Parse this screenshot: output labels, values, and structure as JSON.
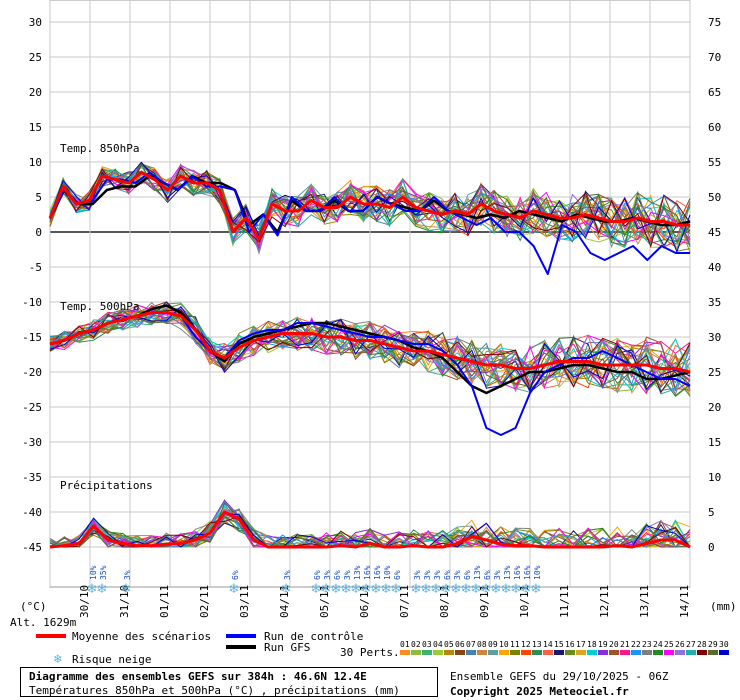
{
  "chart_data": {
    "type": "line",
    "title": "Diagramme des ensembles GEFS sur 384h : 46.6N 12.4E",
    "subtitle": "Températures 850hPa et 500hPa (°C) , précipitations (mm)",
    "left_axis_unit": "(°C)",
    "right_axis_unit": "(mm)",
    "left_ticks": [
      30,
      25,
      20,
      15,
      10,
      5,
      0,
      -5,
      -10,
      -15,
      -20,
      -25,
      -30,
      -35,
      -40,
      -45
    ],
    "right_ticks": [
      75,
      70,
      65,
      60,
      55,
      50,
      45,
      40,
      35,
      30,
      25,
      20,
      15,
      10,
      5,
      0
    ],
    "x_labels": [
      "30/10",
      "31/10",
      "01/11",
      "02/11",
      "03/11",
      "04/11",
      "05/11",
      "06/11",
      "07/11",
      "08/11",
      "09/11",
      "10/11",
      "11/11",
      "12/11",
      "13/11",
      "14/11"
    ],
    "panel_labels": {
      "t850": "Temp. 850hPa",
      "t500": "Temp. 500hPa",
      "precip": "Précipitations"
    },
    "altitude": "Alt. 1629m",
    "grid": true,
    "series": [
      {
        "name": "Moyenne des scénarios",
        "color": "#ff0000",
        "t850": [
          2,
          6.5,
          4,
          4.5,
          8,
          7.5,
          7,
          8.5,
          7.5,
          6,
          8,
          7,
          7,
          6,
          0,
          2,
          -1,
          4,
          3,
          3,
          4.5,
          3.5,
          3.5,
          5,
          4,
          4,
          3.5,
          5,
          3.5,
          3,
          2.5,
          3,
          2.5,
          4,
          3,
          2.5,
          2,
          3,
          2.5,
          2,
          2,
          2.5,
          2,
          1.5,
          1.5,
          2,
          1.5,
          1.5,
          1,
          1
        ],
        "t500": [
          -16,
          -15.5,
          -14.5,
          -14,
          -13,
          -12.5,
          -12,
          -11.5,
          -11.5,
          -12,
          -14,
          -17,
          -18,
          -16.5,
          -15.5,
          -15,
          -14.5,
          -14.5,
          -14.5,
          -15,
          -15,
          -15.5,
          -15.5,
          -16,
          -16.5,
          -17,
          -17,
          -17.5,
          -18,
          -18.5,
          -19,
          -19,
          -19.5,
          -19.5,
          -19,
          -18.5,
          -18.5,
          -18.5,
          -19,
          -19,
          -19,
          -19,
          -19.5,
          -19.5,
          -20
        ],
        "precip": [
          -45,
          -44.8,
          -44.5,
          -42,
          -44,
          -44.5,
          -44.8,
          -44.8,
          -44.6,
          -44.5,
          -44,
          -43,
          -40,
          -41,
          -44,
          -45,
          -45,
          -45,
          -45,
          -45,
          -44.8,
          -45,
          -44.5,
          -45,
          -45,
          -44.8,
          -45,
          -45,
          -44.5,
          -43.5,
          -44,
          -44.6,
          -44.8,
          -44.8,
          -45,
          -45,
          -45,
          -45,
          -45,
          -44.8,
          -45,
          -44.5,
          -44,
          -44,
          -45
        ]
      },
      {
        "name": "Run de contrôle",
        "color": "#0000ff",
        "t850": [
          2,
          6,
          4,
          4.5,
          7.5,
          7.5,
          7,
          8.5,
          7,
          6,
          8,
          6.5,
          6.5,
          6,
          0,
          2.5,
          -0.5,
          5,
          3,
          3,
          5,
          3,
          3,
          5,
          4,
          3,
          3,
          5,
          3,
          2,
          1,
          2,
          0,
          0,
          -2,
          -6,
          1,
          0,
          -3,
          -4,
          -3,
          -2,
          -4,
          -2,
          -3,
          -3
        ],
        "t500": [
          -16,
          -15.5,
          -14.5,
          -14,
          -13,
          -12.5,
          -12,
          -11.5,
          -11.5,
          -12,
          -15,
          -17,
          -18,
          -15.5,
          -14.5,
          -14,
          -14,
          -13,
          -13,
          -13.5,
          -14,
          -14.5,
          -15,
          -15,
          -15.5,
          -16,
          -16,
          -17,
          -19,
          -22,
          -28,
          -29,
          -28,
          -23,
          -20,
          -19,
          -18,
          -18,
          -17,
          -18,
          -19,
          -20,
          -21,
          -21,
          -22
        ]
      },
      {
        "name": "Run GFS",
        "color": "#000000",
        "t850": [
          2,
          6,
          4,
          4,
          6,
          6.5,
          6.5,
          8,
          7,
          6,
          8,
          7,
          7,
          6,
          1,
          2.5,
          0,
          4.5,
          3,
          3,
          4.5,
          3,
          3,
          5,
          4,
          3.5,
          3,
          4.5,
          3,
          2.5,
          2,
          2.5,
          2,
          3,
          2.5,
          2,
          1.5,
          2.5,
          2,
          1.5,
          1.5,
          2,
          1.5,
          1,
          1,
          1.5
        ],
        "t500": [
          -16,
          -15.5,
          -14.5,
          -14,
          -13,
          -12.5,
          -12,
          -11,
          -10.5,
          -11.5,
          -14,
          -17,
          -18.5,
          -16,
          -15,
          -14.5,
          -14,
          -13.5,
          -13,
          -13,
          -13.5,
          -14,
          -14.5,
          -15,
          -15.5,
          -16.5,
          -17,
          -18,
          -20,
          -22,
          -23,
          -22,
          -21,
          -20,
          -20,
          -19.5,
          -19,
          -19,
          -19.5,
          -20,
          -20,
          -21,
          -21,
          -20.5,
          -20
        ]
      }
    ]
  },
  "legend": {
    "mean": "Moyenne des scénarios",
    "control": "Run de contrôle",
    "gfs": "Run GFS",
    "snow": "Risque neige",
    "perts_label": "30 Perts.",
    "perts": [
      "01",
      "02",
      "03",
      "04",
      "05",
      "06",
      "07",
      "08",
      "09",
      "10",
      "11",
      "12",
      "13",
      "14",
      "15",
      "16",
      "17",
      "18",
      "19",
      "20",
      "21",
      "22",
      "23",
      "24",
      "25",
      "26",
      "27",
      "28",
      "29",
      "30"
    ],
    "pert_colors": [
      "#ff8c1a",
      "#8fbc3f",
      "#3cb371",
      "#9acd32",
      "#b8860b",
      "#8b4513",
      "#4682b4",
      "#cd853f",
      "#5f9ea0",
      "#ffa500",
      "#808000",
      "#ff4500",
      "#2e8b57",
      "#ff6347",
      "#191970",
      "#6b8e23",
      "#daa520",
      "#00ced1",
      "#8a2be2",
      "#a0522d",
      "#ff1493",
      "#1e90ff",
      "#808080",
      "#228b22",
      "#ff00ff",
      "#9370db",
      "#20b2aa",
      "#800000",
      "#556b2f",
      "#0000cd"
    ]
  },
  "snow_marks": [
    {
      "x": 4.8,
      "pct": "10%"
    },
    {
      "x": 5.05,
      "pct": "35%"
    },
    {
      "x": 5.65,
      "pct": "3%"
    },
    {
      "x": 8.35,
      "pct": "6%"
    },
    {
      "x": 9.65,
      "pct": "3%"
    },
    {
      "x": 10.4,
      "pct": "6%"
    },
    {
      "x": 10.65,
      "pct": "3%"
    },
    {
      "x": 10.9,
      "pct": "6%"
    },
    {
      "x": 11.15,
      "pct": "3%"
    },
    {
      "x": 11.4,
      "pct": "13%"
    },
    {
      "x": 11.65,
      "pct": "16%"
    },
    {
      "x": 11.9,
      "pct": "16%"
    },
    {
      "x": 12.15,
      "pct": "10%"
    },
    {
      "x": 12.4,
      "pct": "6%"
    },
    {
      "x": 12.9,
      "pct": "3%"
    },
    {
      "x": 13.15,
      "pct": "3%"
    },
    {
      "x": 13.4,
      "pct": "3%"
    },
    {
      "x": 13.65,
      "pct": "6%"
    },
    {
      "x": 13.9,
      "pct": "3%"
    },
    {
      "x": 14.15,
      "pct": "6%"
    },
    {
      "x": 14.4,
      "pct": "13%"
    },
    {
      "x": 14.65,
      "pct": "6%"
    },
    {
      "x": 14.9,
      "pct": "3%"
    },
    {
      "x": 15.15,
      "pct": "13%"
    },
    {
      "x": 15.4,
      "pct": "16%"
    },
    {
      "x": 15.65,
      "pct": "16%"
    },
    {
      "x": 15.9,
      "pct": "10%"
    }
  ],
  "footer": {
    "title": "Diagramme des ensembles GEFS sur 384h : 46.6N 12.4E",
    "subtitle": "Températures 850hPa et 500hPa (°C) , précipitations (mm)",
    "run": "Ensemble GEFS du 29/10/2025 - 06Z",
    "copyright": "Copyright 2025 Meteociel.fr"
  }
}
